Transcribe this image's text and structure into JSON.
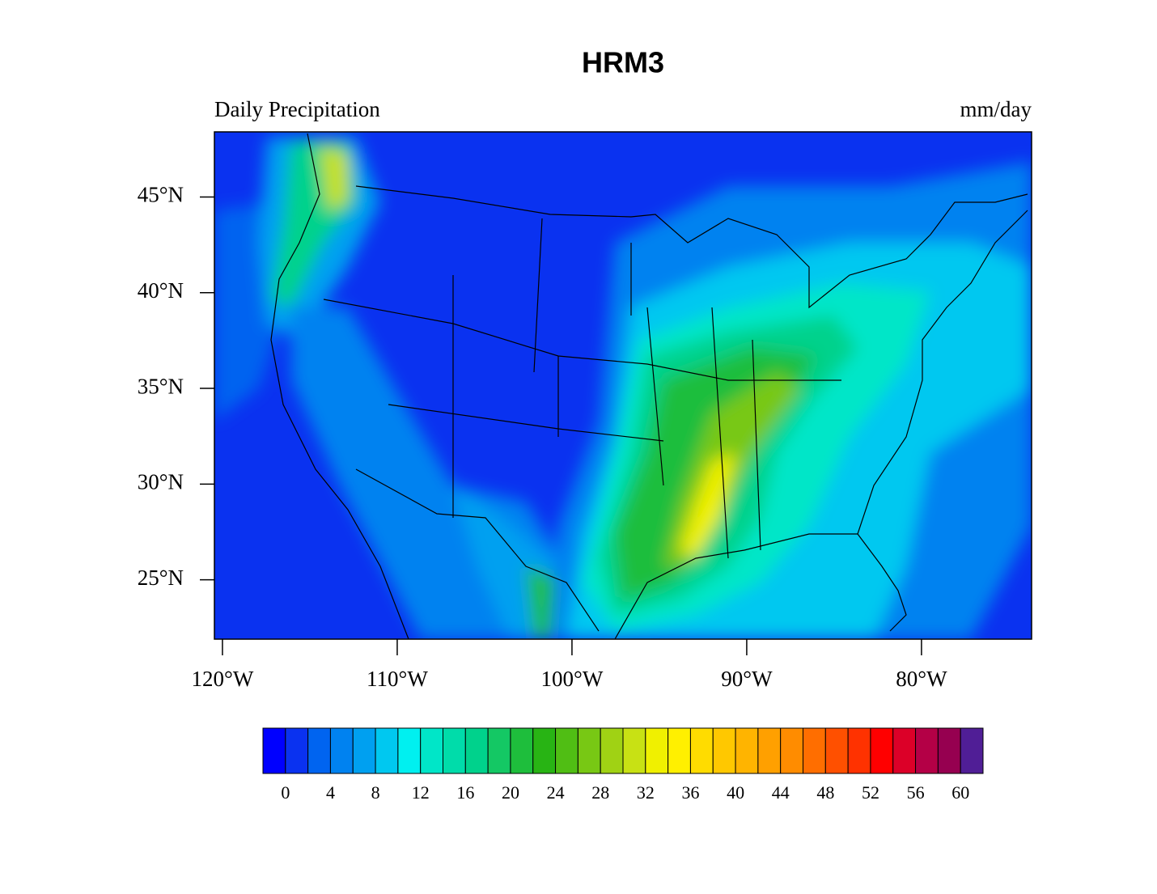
{
  "chart_data": {
    "type": "contour-map",
    "title": "HRM3",
    "left_label": "Daily Precipitation",
    "right_label": "mm/day",
    "xlim": [
      -120.46,
      -73.7
    ],
    "ylim": [
      21.9,
      48.4
    ],
    "xticks": [
      {
        "value": -120,
        "label": "120°W"
      },
      {
        "value": -110,
        "label": "110°W"
      },
      {
        "value": -100,
        "label": "100°W"
      },
      {
        "value": -90,
        "label": "90°W"
      },
      {
        "value": -80,
        "label": "80°W"
      }
    ],
    "yticks": [
      {
        "value": 25,
        "label": "25°N"
      },
      {
        "value": 30,
        "label": "30°N"
      },
      {
        "value": 35,
        "label": "35°N"
      },
      {
        "value": 40,
        "label": "40°N"
      },
      {
        "value": 45,
        "label": "45°N"
      }
    ],
    "colorbar": {
      "levels": [
        0,
        2,
        4,
        6,
        8,
        10,
        12,
        14,
        16,
        18,
        20,
        22,
        24,
        26,
        28,
        30,
        32,
        34,
        36,
        38,
        40,
        42,
        44,
        46,
        48,
        50,
        52,
        54,
        56,
        58,
        60
      ],
      "ticks": [
        0,
        4,
        8,
        12,
        16,
        20,
        24,
        28,
        32,
        36,
        40,
        44,
        48,
        52,
        56,
        60
      ],
      "colors": [
        "#0000ff",
        "#0a32f0",
        "#0064f0",
        "#0082f0",
        "#00a0f0",
        "#00c8f0",
        "#00f0f0",
        "#00e6c8",
        "#00dcaa",
        "#00d28c",
        "#14c864",
        "#1ebe3c",
        "#28b414",
        "#50be14",
        "#78c814",
        "#a0d214",
        "#c8e114",
        "#f0f000",
        "#fff000",
        "#ffdc00",
        "#ffc800",
        "#ffb400",
        "#ffa000",
        "#ff8c00",
        "#ff6e00",
        "#ff5000",
        "#ff3200",
        "#ff0000",
        "#dc0028",
        "#b40046",
        "#960050",
        "#501e96"
      ]
    }
  }
}
